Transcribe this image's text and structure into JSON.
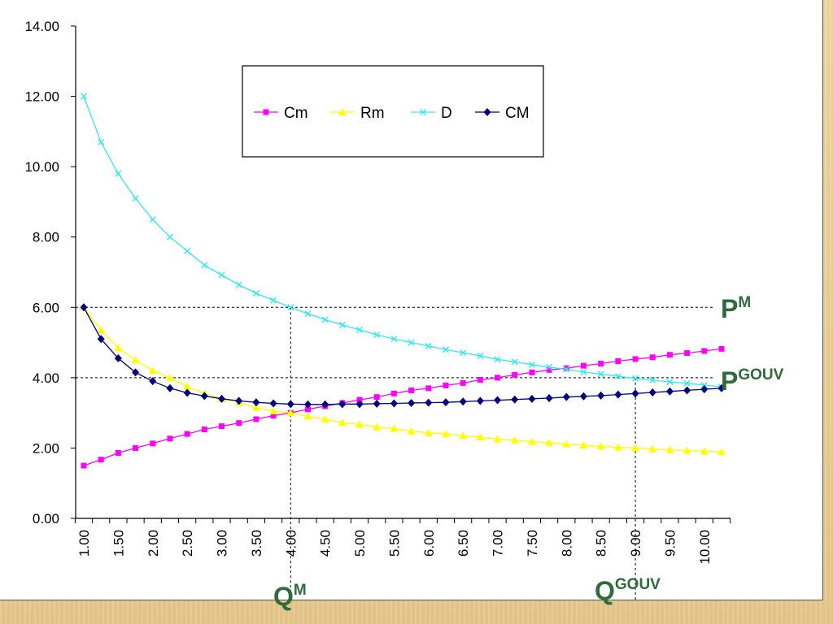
{
  "chart_data": {
    "type": "line",
    "x": [
      1.0,
      1.25,
      1.5,
      1.75,
      2.0,
      2.25,
      2.5,
      2.75,
      3.0,
      3.25,
      3.5,
      3.75,
      4.0,
      4.25,
      4.5,
      4.75,
      5.0,
      5.25,
      5.5,
      5.75,
      6.0,
      6.25,
      6.5,
      6.75,
      7.0,
      7.25,
      7.5,
      7.75,
      8.0,
      8.25,
      8.5,
      8.75,
      9.0,
      9.25,
      9.5,
      9.75,
      10.0,
      10.25
    ],
    "x_tick_labels": [
      "1.00",
      "1.50",
      "2.00",
      "2.50",
      "3.00",
      "3.50",
      "4.00",
      "4.50",
      "5.00",
      "5.50",
      "6.00",
      "6.50",
      "7.00",
      "7.50",
      "8.00",
      "8.50",
      "9.00",
      "9.50",
      "10.00"
    ],
    "y_tick_labels": [
      "0.00",
      "2.00",
      "4.00",
      "6.00",
      "8.00",
      "10.00",
      "12.00",
      "14.00"
    ],
    "ylim": [
      0,
      14
    ],
    "grid": false,
    "legend_position": "top-center",
    "series": [
      {
        "name": "Cm",
        "color": "#ff00ff",
        "marker": "square",
        "values": [
          1.5,
          1.67,
          1.86,
          2.0,
          2.13,
          2.27,
          2.4,
          2.53,
          2.62,
          2.71,
          2.82,
          2.92,
          3.0,
          3.1,
          3.19,
          3.28,
          3.37,
          3.45,
          3.55,
          3.64,
          3.7,
          3.78,
          3.85,
          3.94,
          4.0,
          4.08,
          4.15,
          4.22,
          4.27,
          4.34,
          4.4,
          4.47,
          4.53,
          4.58,
          4.65,
          4.7,
          4.76,
          4.82
        ]
      },
      {
        "name": "Rm",
        "color": "#ffff00",
        "marker": "triangle",
        "values": [
          6.0,
          5.35,
          4.85,
          4.5,
          4.2,
          4.0,
          3.75,
          3.55,
          3.4,
          3.3,
          3.15,
          3.05,
          3.0,
          2.9,
          2.82,
          2.72,
          2.67,
          2.6,
          2.55,
          2.48,
          2.43,
          2.4,
          2.35,
          2.31,
          2.25,
          2.22,
          2.18,
          2.15,
          2.11,
          2.08,
          2.05,
          2.02,
          2.0,
          1.97,
          1.95,
          1.93,
          1.91,
          1.89
        ]
      },
      {
        "name": "D",
        "color": "#33e8ee",
        "marker": "x",
        "values": [
          12.0,
          10.7,
          9.8,
          9.1,
          8.5,
          8.0,
          7.6,
          7.2,
          6.92,
          6.64,
          6.4,
          6.2,
          6.0,
          5.82,
          5.65,
          5.5,
          5.36,
          5.22,
          5.1,
          5.0,
          4.9,
          4.8,
          4.71,
          4.62,
          4.52,
          4.45,
          4.37,
          4.3,
          4.24,
          4.16,
          4.1,
          4.04,
          3.98,
          3.93,
          3.88,
          3.84,
          3.79,
          3.74
        ]
      },
      {
        "name": "CM",
        "color": "#000080",
        "marker": "diamond",
        "values": [
          6.0,
          5.1,
          4.55,
          4.15,
          3.9,
          3.7,
          3.57,
          3.48,
          3.4,
          3.34,
          3.3,
          3.27,
          3.25,
          3.24,
          3.24,
          3.25,
          3.25,
          3.26,
          3.27,
          3.28,
          3.29,
          3.3,
          3.32,
          3.34,
          3.36,
          3.38,
          3.4,
          3.42,
          3.45,
          3.47,
          3.49,
          3.52,
          3.55,
          3.58,
          3.61,
          3.64,
          3.67,
          3.7
        ]
      }
    ],
    "reference_lines": [
      {
        "axis": "y",
        "value": 6.0
      },
      {
        "axis": "y",
        "value": 4.0
      },
      {
        "axis": "x",
        "value": 4.0
      },
      {
        "axis": "x",
        "value": 9.0
      }
    ],
    "annotations": [
      {
        "id": "p_m",
        "main": "P",
        "sup": "M"
      },
      {
        "id": "p_gouv",
        "main": "P",
        "sup": "GOUV"
      },
      {
        "id": "q_m",
        "main": "Q",
        "sup": "M"
      },
      {
        "id": "q_gouv",
        "main": "Q",
        "sup": "GOUV"
      }
    ]
  }
}
